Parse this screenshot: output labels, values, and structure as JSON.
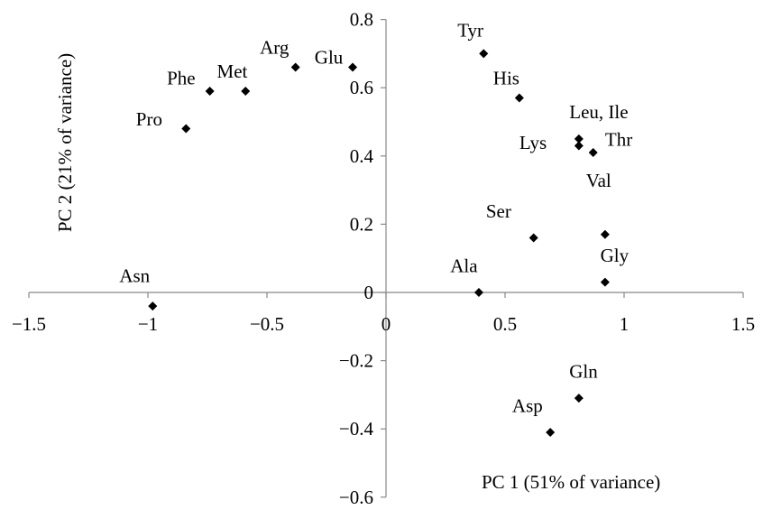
{
  "chart_data": {
    "type": "scatter",
    "xlabel": "PC 1 (51% of variance)",
    "ylabel": "PC 2 (21% of variance)",
    "xlim": [
      -1.5,
      1.5
    ],
    "ylim": [
      -0.6,
      0.8
    ],
    "x_ticks": [
      {
        "value": -1.5,
        "label": "−1.5"
      },
      {
        "value": -1,
        "label": "−1"
      },
      {
        "value": -0.5,
        "label": "−0.5"
      },
      {
        "value": 0,
        "label": "0"
      },
      {
        "value": 0.5,
        "label": "0.5"
      },
      {
        "value": 1,
        "label": "1"
      },
      {
        "value": 1.5,
        "label": "1.5"
      }
    ],
    "y_ticks": [
      {
        "value": -0.6,
        "label": "−0.6"
      },
      {
        "value": -0.4,
        "label": "−0.4"
      },
      {
        "value": -0.2,
        "label": "−0.2"
      },
      {
        "value": 0,
        "label": "0"
      },
      {
        "value": 0.2,
        "label": "0.2"
      },
      {
        "value": 0.4,
        "label": "0.4"
      },
      {
        "value": 0.6,
        "label": "0.6"
      },
      {
        "value": 0.8,
        "label": "0.8"
      }
    ],
    "grid": false,
    "marker": "diamond",
    "marker_color": "#000000",
    "points": [
      {
        "x": 0.41,
        "y": 0.7
      },
      {
        "x": 0.56,
        "y": 0.57
      },
      {
        "x": 0.81,
        "y": 0.45
      },
      {
        "x": 0.81,
        "y": 0.43
      },
      {
        "x": 0.87,
        "y": 0.41
      },
      {
        "x": 0.92,
        "y": 0.17
      },
      {
        "x": 0.62,
        "y": 0.16
      },
      {
        "x": 0.92,
        "y": 0.03
      },
      {
        "x": 0.39,
        "y": 0.0
      },
      {
        "x": 0.81,
        "y": -0.31
      },
      {
        "x": 0.69,
        "y": -0.41
      },
      {
        "x": -0.98,
        "y": -0.04
      },
      {
        "x": -0.84,
        "y": 0.48
      },
      {
        "x": -0.74,
        "y": 0.59
      },
      {
        "x": -0.59,
        "y": 0.59
      },
      {
        "x": -0.38,
        "y": 0.66
      },
      {
        "x": -0.14,
        "y": 0.66
      }
    ],
    "point_labels": [
      {
        "text": "Tyr",
        "x": 0.3,
        "y": 0.75
      },
      {
        "text": "His",
        "x": 0.45,
        "y": 0.61
      },
      {
        "text": "Leu, Ile",
        "x": 0.77,
        "y": 0.51
      },
      {
        "text": "Lys",
        "x": 0.56,
        "y": 0.42
      },
      {
        "text": "Thr",
        "x": 0.92,
        "y": 0.43
      },
      {
        "text": "Val",
        "x": 0.84,
        "y": 0.31
      },
      {
        "text": "Ser",
        "x": 0.42,
        "y": 0.22
      },
      {
        "text": "Gly",
        "x": 0.9,
        "y": 0.09
      },
      {
        "text": "Ala",
        "x": 0.27,
        "y": 0.06
      },
      {
        "text": "Gln",
        "x": 0.77,
        "y": -0.25
      },
      {
        "text": "Asp",
        "x": 0.53,
        "y": -0.35
      },
      {
        "text": "Asn",
        "x": -1.12,
        "y": 0.03
      },
      {
        "text": "Pro",
        "x": -1.05,
        "y": 0.49
      },
      {
        "text": "Phe",
        "x": -0.92,
        "y": 0.61
      },
      {
        "text": "Met",
        "x": -0.71,
        "y": 0.63
      },
      {
        "text": "Arg",
        "x": -0.53,
        "y": 0.7
      },
      {
        "text": "Glu",
        "x": -0.3,
        "y": 0.67
      }
    ]
  }
}
